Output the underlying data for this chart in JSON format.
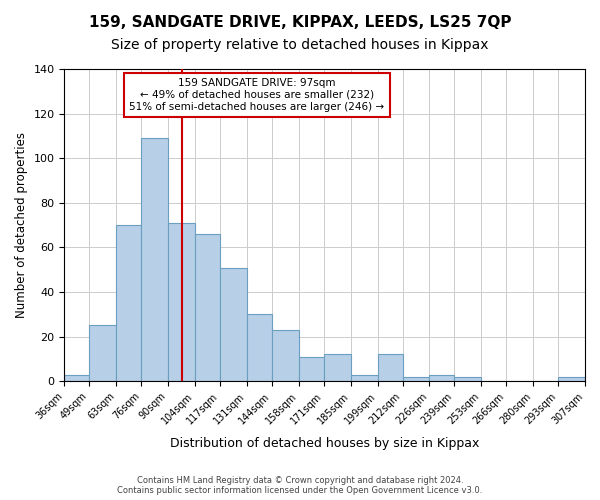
{
  "title": "159, SANDGATE DRIVE, KIPPAX, LEEDS, LS25 7QP",
  "subtitle": "Size of property relative to detached houses in Kippax",
  "xlabel": "Distribution of detached houses by size in Kippax",
  "ylabel": "Number of detached properties",
  "bin_labels": [
    "36sqm",
    "49sqm",
    "63sqm",
    "76sqm",
    "90sqm",
    "104sqm",
    "117sqm",
    "131sqm",
    "144sqm",
    "158sqm",
    "171sqm",
    "185sqm",
    "199sqm",
    "212sqm",
    "226sqm",
    "239sqm",
    "253sqm",
    "266sqm",
    "280sqm",
    "293sqm",
    "307sqm"
  ],
  "bin_edges": [
    36,
    49,
    63,
    76,
    90,
    104,
    117,
    131,
    144,
    158,
    171,
    185,
    199,
    212,
    226,
    239,
    253,
    266,
    280,
    293,
    307
  ],
  "bar_heights": [
    3,
    25,
    70,
    109,
    71,
    66,
    51,
    30,
    23,
    11,
    12,
    3,
    12,
    2,
    3,
    2,
    0,
    0,
    0,
    2
  ],
  "bar_color": "#b8cfe8",
  "bar_edge_color": "#6a9fc0",
  "marker_value": 97,
  "marker_color": "#cc0000",
  "annotation_line1": "159 SANDGATE DRIVE: 97sqm",
  "annotation_line2": "← 49% of detached houses are smaller (232)",
  "annotation_line3": "51% of semi-detached houses are larger (246) →",
  "annotation_box_edge_color": "#cc0000",
  "ylim": [
    0,
    140
  ],
  "yticks": [
    0,
    20,
    40,
    60,
    80,
    100,
    120,
    140
  ],
  "footer_line1": "Contains HM Land Registry data © Crown copyright and database right 2024.",
  "footer_line2": "Contains public sector information licensed under the Open Government Licence v3.0.",
  "title_fontsize": 11,
  "subtitle_fontsize": 10,
  "background_color": "#ffffff",
  "grid_color": "#cccccc"
}
